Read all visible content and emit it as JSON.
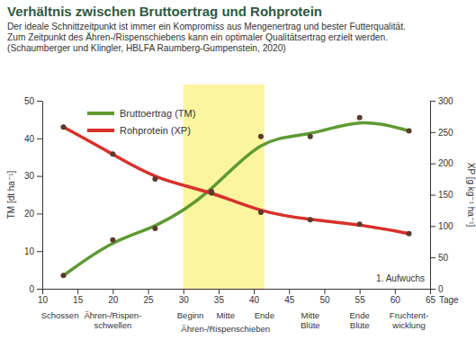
{
  "chart_data": {
    "type": "line",
    "title": "Verhältnis zwischen Bruttoertrag und Rohprotein",
    "subtitle": [
      "Der ideale Schnittzeitpunkt ist immer ein Kompromiss aus Mengenertrag und bester Futterqualität.",
      "Zum Zeitpunkt des Ähren-/Rispenschiebens kann ein optimaler Qualitätsertrag erzielt werden.",
      "(Schaumberger und Klingler, HBLFA Raumberg-Gumpenstein, 2020)"
    ],
    "x": [
      13,
      20,
      26,
      34,
      41,
      48,
      55,
      62
    ],
    "series": [
      {
        "name": "Bruttoertrag (TM)",
        "color": "#5e9a32",
        "marker": "circle",
        "values": [
          3.5,
          13,
          16,
          25.5,
          40.5,
          40.5,
          45.5,
          42
        ]
      },
      {
        "name": "Rohprotein (XP)",
        "color": "#d8312b",
        "marker": "circle",
        "axis": "y2",
        "values": [
          258,
          215,
          175,
          155,
          122,
          110,
          103,
          88
        ]
      }
    ],
    "xlim": [
      10,
      65
    ],
    "xticks": [
      10,
      15,
      20,
      25,
      30,
      35,
      40,
      45,
      50,
      55,
      60,
      65
    ],
    "x_label": "Tage",
    "ylim": [
      0,
      50
    ],
    "yticks": [
      0,
      10,
      20,
      30,
      40,
      50
    ],
    "y_label": "TM [dt ha⁻¹]",
    "y2lim": [
      0,
      300
    ],
    "y2ticks": [
      0,
      50,
      100,
      150,
      200,
      250,
      300
    ],
    "y2_label": "XP [g kg⁻¹ ha⁻¹]",
    "legend": "upper left",
    "grid": false,
    "band": {
      "x": [
        30,
        41.5
      ],
      "color": "#fbf5a0"
    },
    "note": "1. Aufwuchs",
    "annotations": [
      {
        "x": 12.5,
        "text": [
          "Schossen"
        ]
      },
      {
        "x": 20,
        "text": [
          "Ähren-/Rispen-",
          "schwellen"
        ]
      },
      {
        "x": 31,
        "text": [
          "Beginn"
        ]
      },
      {
        "x": 36,
        "text": [
          "Mitte"
        ]
      },
      {
        "x": 41.5,
        "text": [
          "Ende"
        ]
      },
      {
        "x": 48,
        "text": [
          "Mitte",
          "Blüte"
        ]
      },
      {
        "x": 55,
        "text": [
          "Ende",
          "Blüte"
        ]
      },
      {
        "x": 62,
        "text": [
          "Fruchtent-",
          "wicklung"
        ]
      }
    ],
    "group_label": {
      "x": 36,
      "text": "Ähren-/Rispenschieben"
    }
  }
}
